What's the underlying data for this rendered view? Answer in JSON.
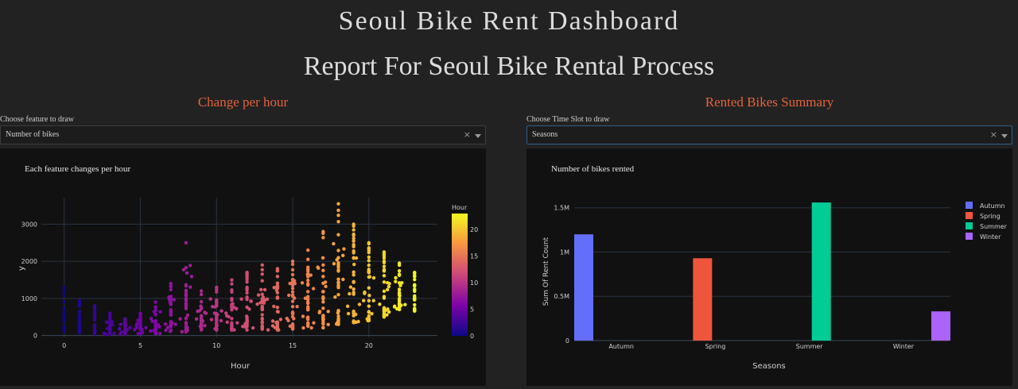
{
  "header": {
    "title": "Seoul Bike Rent Dashboard",
    "subtitle": "Report For Seoul Bike Rental Process"
  },
  "left_panel": {
    "title": "Change per hour",
    "control_label": "Choose feature to draw",
    "selected_value": "Number of bikes",
    "clear_glyph": "×"
  },
  "right_panel": {
    "title": "Rented Bikes Summary",
    "control_label": "Choose Time Slot to draw",
    "selected_value": "Seasons",
    "clear_glyph": "×"
  },
  "chart_data": [
    {
      "type": "scatter",
      "title": "Each feature changes per hour",
      "xlabel": "Hour",
      "ylabel": "y",
      "xlim": [
        -1.5,
        24.5
      ],
      "ylim": [
        -50,
        3800
      ],
      "xticks": [
        0,
        5,
        10,
        15,
        20
      ],
      "yticks": [
        0,
        1000,
        2000,
        3000
      ],
      "colorbar": {
        "title": "Hour",
        "min": 0,
        "max": 23,
        "ticks": [
          0,
          5,
          10,
          15,
          20
        ]
      },
      "hour_ranges": [
        [
          0,
          100,
          1300
        ],
        [
          1,
          60,
          950
        ],
        [
          2,
          40,
          800
        ],
        [
          3,
          30,
          600
        ],
        [
          4,
          30,
          450
        ],
        [
          5,
          50,
          600
        ],
        [
          6,
          50,
          900
        ],
        [
          7,
          80,
          1400
        ],
        [
          8,
          100,
          2500
        ],
        [
          9,
          150,
          1200
        ],
        [
          10,
          150,
          1300
        ],
        [
          11,
          150,
          1500
        ],
        [
          12,
          150,
          1700
        ],
        [
          13,
          150,
          1900
        ],
        [
          14,
          150,
          1800
        ],
        [
          15,
          150,
          2000
        ],
        [
          16,
          200,
          2300
        ],
        [
          17,
          200,
          2800
        ],
        [
          18,
          300,
          3550
        ],
        [
          19,
          350,
          3000
        ],
        [
          20,
          400,
          2500
        ],
        [
          21,
          500,
          2250
        ],
        [
          22,
          700,
          1950
        ],
        [
          23,
          650,
          1700
        ]
      ]
    },
    {
      "type": "bar",
      "title": "Number of bikes rented",
      "xlabel": "Seasons",
      "ylabel": "Sum Of Rent Count",
      "categories": [
        "Autumn",
        "Spring",
        "Summer",
        "Winter"
      ],
      "values": [
        1200000,
        930000,
        1560000,
        330000
      ],
      "ylim": [
        0,
        1650000
      ],
      "yticks": [
        0,
        500000,
        1000000,
        1500000
      ],
      "ytick_labels": [
        "0",
        "0.5M",
        "1M",
        "1.5M"
      ],
      "series": [
        {
          "name": "Autumn",
          "color": "#636efa"
        },
        {
          "name": "Spring",
          "color": "#ef553b"
        },
        {
          "name": "Summer",
          "color": "#00cc96"
        },
        {
          "name": "Winter",
          "color": "#ab63fa"
        }
      ],
      "legend_position": "top-right"
    }
  ]
}
